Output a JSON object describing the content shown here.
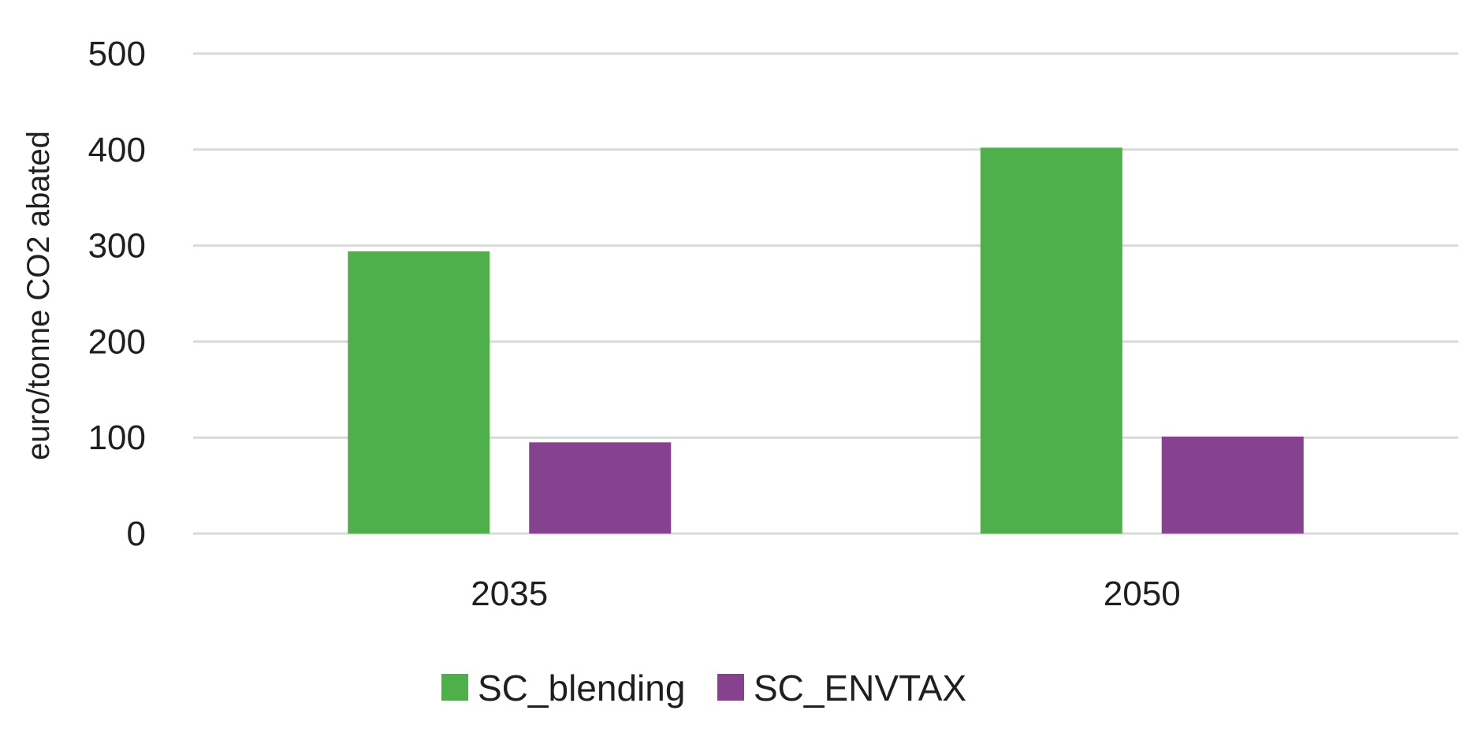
{
  "chart_data": {
    "type": "bar",
    "title": "",
    "xlabel": "",
    "ylabel": "euro/tonne CO2 abated",
    "categories": [
      "2035",
      "2050"
    ],
    "series": [
      {
        "name": "SC_blending",
        "color": "#4faf4a",
        "values": [
          294,
          402
        ]
      },
      {
        "name": "SC_ENVTAX",
        "color": "#86418f",
        "values": [
          95,
          101
        ]
      }
    ],
    "ylim": [
      0,
      500
    ],
    "yticks": [
      0,
      100,
      200,
      300,
      400,
      500
    ],
    "grid": true,
    "legend_position": "bottom"
  }
}
